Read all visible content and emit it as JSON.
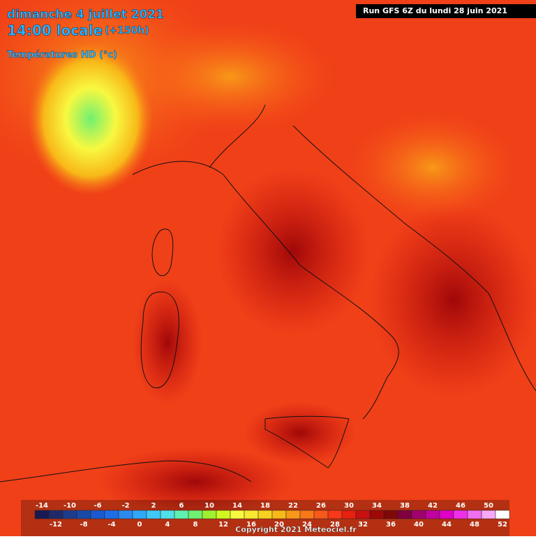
{
  "header": {
    "date": "dimanche 4 juillet 2021",
    "time": "14:00 locale",
    "lead": "(+150h)",
    "field": "Températures HD (°c)",
    "run": "Run GFS 6Z du lundi 28 juin 2021"
  },
  "legend": {
    "values": [
      -14,
      -12,
      -10,
      -8,
      -6,
      -4,
      -2,
      0,
      2,
      4,
      6,
      8,
      10,
      12,
      14,
      16,
      18,
      20,
      22,
      24,
      26,
      28,
      30,
      32,
      34,
      36,
      38,
      40,
      42,
      44,
      46,
      48,
      50,
      52
    ],
    "colors": [
      "#1a1a50",
      "#202a6a",
      "#1e3c8c",
      "#1a4aa8",
      "#1a5ad0",
      "#1e6ee8",
      "#2a8af0",
      "#30a8f8",
      "#40c8f8",
      "#50e0e8",
      "#60f0b0",
      "#70f070",
      "#a0f030",
      "#d0f820",
      "#f8f840",
      "#f8e830",
      "#f8d020",
      "#f8b818",
      "#f89818",
      "#f87818",
      "#f85818",
      "#f83818",
      "#e82010",
      "#c81010",
      "#a00808",
      "#800808",
      "#800040",
      "#a00070",
      "#c000a0",
      "#e000c8",
      "#f030e8",
      "#f070f0",
      "#f8a8f8",
      "#ffffff"
    ]
  },
  "footer": {
    "copyright": "Copyright 2021 Meteociel.fr"
  }
}
